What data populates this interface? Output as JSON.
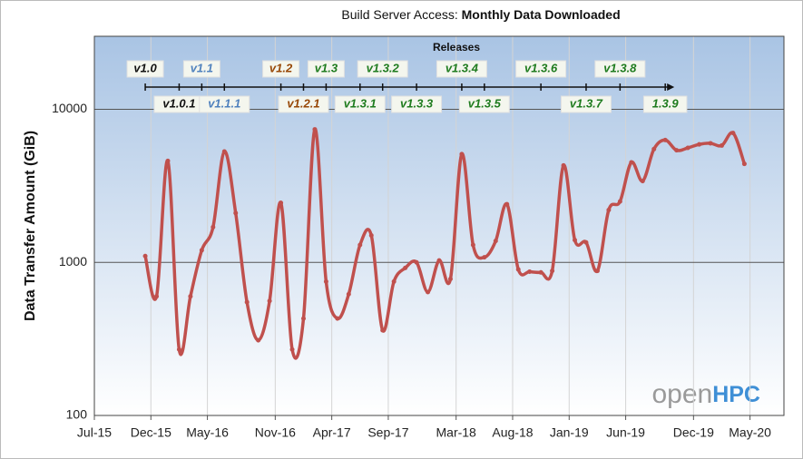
{
  "chart_data": {
    "type": "line",
    "title": {
      "prefix": "Build Server Access:",
      "emphasis": "Monthly Data Downloaded"
    },
    "y_label": "Data Transfer Amount (GiB)",
    "log_scale_y": true,
    "grid": true,
    "ylim": [
      100,
      30000
    ],
    "yticks": [
      100,
      1000,
      10000
    ],
    "xlim": [
      "2015-07",
      "2020-08"
    ],
    "xticks": [
      {
        "value": "2015-07",
        "label": "Jul-15"
      },
      {
        "value": "2015-12",
        "label": "Dec-15"
      },
      {
        "value": "2016-05",
        "label": "May-16"
      },
      {
        "value": "2016-11",
        "label": "Nov-16"
      },
      {
        "value": "2017-04",
        "label": "Apr-17"
      },
      {
        "value": "2017-09",
        "label": "Sep-17"
      },
      {
        "value": "2018-03",
        "label": "Mar-18"
      },
      {
        "value": "2018-08",
        "label": "Aug-18"
      },
      {
        "value": "2019-01",
        "label": "Jan-19"
      },
      {
        "value": "2019-06",
        "label": "Jun-19"
      },
      {
        "value": "2019-12",
        "label": "Dec-19"
      },
      {
        "value": "2020-05",
        "label": "May-20"
      }
    ],
    "x": [
      "2015-11",
      "2015-12",
      "2016-01",
      "2016-02",
      "2016-03",
      "2016-04",
      "2016-05",
      "2016-06",
      "2016-07",
      "2016-08",
      "2016-09",
      "2016-10",
      "2016-11",
      "2016-12",
      "2017-01",
      "2017-02",
      "2017-03",
      "2017-04",
      "2017-05",
      "2017-06",
      "2017-07",
      "2017-08",
      "2017-09",
      "2017-10",
      "2017-11",
      "2017-12",
      "2018-01",
      "2018-02",
      "2018-03",
      "2018-04",
      "2018-05",
      "2018-06",
      "2018-07",
      "2018-08",
      "2018-09",
      "2018-10",
      "2018-11",
      "2018-12",
      "2019-01",
      "2019-02",
      "2019-03",
      "2019-04",
      "2019-05",
      "2019-06",
      "2019-07",
      "2019-08",
      "2019-09",
      "2019-10",
      "2019-11",
      "2019-12",
      "2020-01",
      "2020-02",
      "2020-03",
      "2020-04"
    ],
    "series": [
      {
        "name": "Monthly Data Downloaded",
        "color": "#c0504d",
        "values": [
          1100,
          600,
          4600,
          270,
          600,
          1200,
          1700,
          5300,
          2100,
          550,
          310,
          560,
          2450,
          270,
          430,
          7400,
          750,
          430,
          620,
          1300,
          1500,
          360,
          750,
          920,
          1000,
          640,
          1030,
          780,
          5100,
          1300,
          1080,
          1380,
          2400,
          900,
          870,
          860,
          880,
          4300,
          1400,
          1350,
          880,
          2200,
          2500,
          4500,
          3400,
          5500,
          6300,
          5400,
          5600,
          5900,
          6000,
          5800,
          7000,
          4400
        ]
      }
    ],
    "releases_title": "Releases",
    "releases": [
      {
        "label": "v1.0",
        "date": "2015-11",
        "color": "#111111"
      },
      {
        "label": "v1.0.1",
        "date": "2016-02",
        "color": "#111111"
      },
      {
        "label": "v1.1",
        "date": "2016-04",
        "color": "#4f81bd"
      },
      {
        "label": "v1.1.1",
        "date": "2016-06",
        "color": "#4f81bd"
      },
      {
        "label": "v1.2",
        "date": "2016-11",
        "color": "#974706"
      },
      {
        "label": "v1.2.1",
        "date": "2017-01",
        "color": "#974706"
      },
      {
        "label": "v1.3",
        "date": "2017-03",
        "color": "#1e7b1e"
      },
      {
        "label": "v1.3.1",
        "date": "2017-06",
        "color": "#1e7b1e"
      },
      {
        "label": "v1.3.2",
        "date": "2017-08",
        "color": "#1e7b1e"
      },
      {
        "label": "v1.3.3",
        "date": "2017-11",
        "color": "#1e7b1e"
      },
      {
        "label": "v1.3.4",
        "date": "2018-03",
        "color": "#1e7b1e"
      },
      {
        "label": "v1.3.5",
        "date": "2018-05",
        "color": "#1e7b1e"
      },
      {
        "label": "v1.3.6",
        "date": "2018-10",
        "color": "#1e7b1e"
      },
      {
        "label": "v1.3.7",
        "date": "2019-02",
        "color": "#1e7b1e"
      },
      {
        "label": "v1.3.8",
        "date": "2019-05",
        "color": "#1e7b1e"
      },
      {
        "label": "1.3.9",
        "date": "2019-09",
        "color": "#1e7b1e"
      }
    ],
    "logo": {
      "part1": "open",
      "part2": "HPC"
    }
  }
}
